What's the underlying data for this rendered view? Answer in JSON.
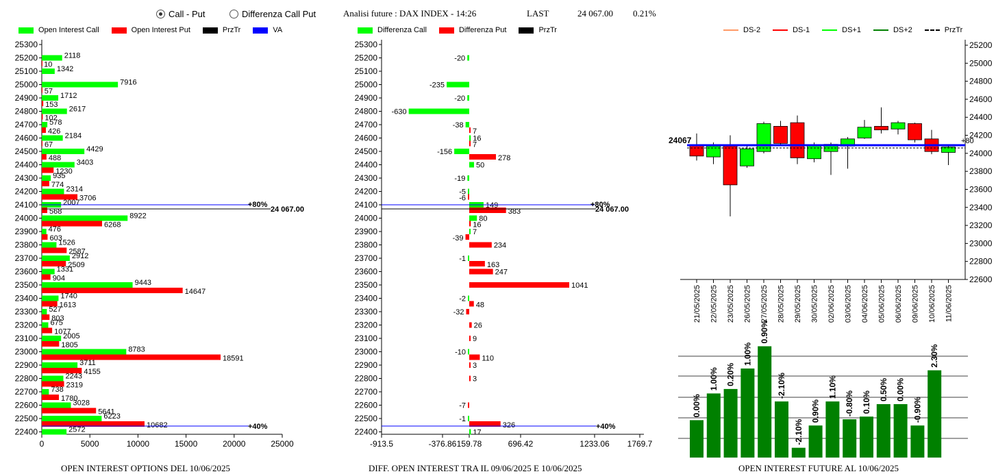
{
  "header": {
    "radio_call_put": "Call - Put",
    "radio_diff": "Differenza Call Put",
    "title": "Analisi future : DAX INDEX - 14:26",
    "last_label": "LAST",
    "last_value": "24 067.00",
    "last_change": "0.21%"
  },
  "colors": {
    "call": "#00ff00",
    "put": "#ff0000",
    "przTr": "#000000",
    "va": "#0000ff",
    "future_bar": "#008000",
    "ds_minus2": "#ff9966",
    "ds_plus2": "#008000"
  },
  "legends": {
    "left": [
      "Open Interest Call",
      "Open Interest Put",
      "PrzTr",
      "VA"
    ],
    "mid": [
      "Differenza Call",
      "Differenza Put",
      "PrzTr"
    ],
    "right": [
      "DS-2",
      "DS-1",
      "DS+1",
      "DS+2",
      "PrzTr"
    ]
  },
  "footers": {
    "left": "OPEN INTEREST OPTIONS DEL 10/06/2025",
    "mid": "DIFF. OPEN INTEREST TRA IL 09/06/2025 E 10/06/2025",
    "right": "OPEN INTEREST FUTURE AL 10/06/2025"
  },
  "chart_data": [
    {
      "type": "bar",
      "orientation": "horizontal",
      "strikes": [
        25300,
        25200,
        25100,
        25000,
        24900,
        24800,
        24700,
        24600,
        24500,
        24400,
        24300,
        24200,
        24100,
        24000,
        23900,
        23800,
        23700,
        23600,
        23500,
        23400,
        23300,
        23200,
        23100,
        23000,
        22900,
        22800,
        22700,
        22600,
        22500,
        22400
      ],
      "series": [
        {
          "name": "Open Interest Call",
          "values": [
            null,
            2118,
            1342,
            7916,
            1712,
            2617,
            578,
            2184,
            4429,
            3403,
            935,
            2314,
            2007,
            8922,
            476,
            1526,
            2912,
            1331,
            9443,
            1740,
            527,
            675,
            2005,
            8783,
            3711,
            2243,
            738,
            3028,
            6223,
            2572
          ]
        },
        {
          "name": "Open Interest Put",
          "values": [
            null,
            10,
            null,
            57,
            153,
            102,
            426,
            67,
            488,
            1230,
            774,
            3706,
            568,
            6268,
            603,
            2587,
            2509,
            904,
            14647,
            1613,
            803,
            1077,
            1805,
            18591,
            4155,
            2319,
            1780,
            5641,
            10682,
            null
          ]
        }
      ],
      "xlim": [
        0,
        25000
      ],
      "xticks": [
        0,
        5000,
        10000,
        15000,
        20000,
        25000
      ],
      "price_label": "24 067.00",
      "va_high_label": "80%",
      "va_high_strike": 24100,
      "va_low_label": "40%",
      "va_low_strike": 22450
    },
    {
      "type": "bar",
      "orientation": "horizontal",
      "strikes": [
        25300,
        25200,
        25100,
        25000,
        24900,
        24800,
        24700,
        24600,
        24500,
        24400,
        24300,
        24200,
        24100,
        24000,
        23900,
        23800,
        23700,
        23600,
        23500,
        23400,
        23300,
        23200,
        23100,
        23000,
        22900,
        22800,
        22700,
        22600,
        22500,
        22400
      ],
      "series": [
        {
          "name": "Differenza Call",
          "values": [
            null,
            -20,
            null,
            -235,
            -20,
            -630,
            -38,
            16,
            -156,
            50,
            -19,
            -5,
            149,
            80,
            7,
            null,
            -1,
            null,
            null,
            -2,
            null,
            null,
            null,
            -10,
            null,
            null,
            null,
            null,
            -1,
            17
          ]
        },
        {
          "name": "Differenza Put",
          "values": [
            null,
            null,
            null,
            null,
            null,
            null,
            7,
            7,
            278,
            null,
            null,
            -6,
            383,
            16,
            -39,
            234,
            163,
            247,
            1041,
            48,
            -32,
            26,
            9,
            110,
            3,
            3,
            null,
            -7,
            326,
            null
          ]
        }
      ],
      "xlim": [
        -913.5,
        1769.7
      ],
      "xticks": [
        -913.5,
        -376.86,
        159.78,
        696.42,
        1233.06,
        1769.7
      ],
      "price_label": "24 067.00",
      "va_high_label": "80%",
      "va_low_label": "40%"
    },
    {
      "type": "candlestick",
      "dates": [
        "21/05/2025",
        "22/05/2025",
        "23/05/2025",
        "26/05/2025",
        "27/05/2025",
        "28/05/2025",
        "29/05/2025",
        "30/05/2025",
        "02/06/2025",
        "03/06/2025",
        "04/06/2025",
        "05/06/2025",
        "06/06/2025",
        "09/06/2025",
        "10/06/2025",
        "11/06/2025"
      ],
      "candles": [
        {
          "o": 24090,
          "c": 23970,
          "h": 24220,
          "l": 23920
        },
        {
          "o": 23960,
          "c": 24080,
          "h": 24120,
          "l": 23880
        },
        {
          "o": 24080,
          "c": 23650,
          "h": 24200,
          "l": 23300
        },
        {
          "o": 23860,
          "c": 24050,
          "h": 24080,
          "l": 23840
        },
        {
          "o": 24020,
          "c": 24330,
          "h": 24350,
          "l": 24000
        },
        {
          "o": 24300,
          "c": 24110,
          "h": 24360,
          "l": 24080
        },
        {
          "o": 24340,
          "c": 23950,
          "h": 24420,
          "l": 23880
        },
        {
          "o": 23940,
          "c": 24090,
          "h": 24120,
          "l": 23900
        },
        {
          "o": 24020,
          "c": 24100,
          "h": 24120,
          "l": 23760
        },
        {
          "o": 24080,
          "c": 24160,
          "h": 24180,
          "l": 23830
        },
        {
          "o": 24170,
          "c": 24290,
          "h": 24370,
          "l": 24160
        },
        {
          "o": 24300,
          "c": 24260,
          "h": 24510,
          "l": 24220
        },
        {
          "o": 24270,
          "c": 24340,
          "h": 24360,
          "l": 24210
        },
        {
          "o": 24330,
          "c": 24150,
          "h": 24340,
          "l": 24120
        },
        {
          "o": 24160,
          "c": 24020,
          "h": 24260,
          "l": 23990
        },
        {
          "o": 24010,
          "c": 24070,
          "h": 24100,
          "l": 23870
        }
      ],
      "ylim": [
        22600,
        25200
      ],
      "yticks": [
        22600,
        22800,
        23000,
        23200,
        23400,
        23600,
        23800,
        24000,
        24200,
        24400,
        24600,
        24800,
        25000,
        25200
      ],
      "price_label": "24067",
      "price": 24067,
      "right_edge_label": "+80"
    },
    {
      "type": "bar",
      "labels": [
        "0.00%",
        "1.00%",
        "0.20%",
        "1.00%",
        "0.90%",
        "-2.10%",
        "-2.10%",
        "0.90%",
        "1.10%",
        "-0.80%",
        "0.10%",
        "0.50%",
        "0.00%",
        "-0.90%",
        "2.30%"
      ],
      "values": [
        0.42,
        0.72,
        0.77,
        1.0,
        1.25,
        0.63,
        0.11,
        0.36,
        0.63,
        0.43,
        0.46,
        0.6,
        0.6,
        0.36,
        0.98
      ]
    }
  ]
}
